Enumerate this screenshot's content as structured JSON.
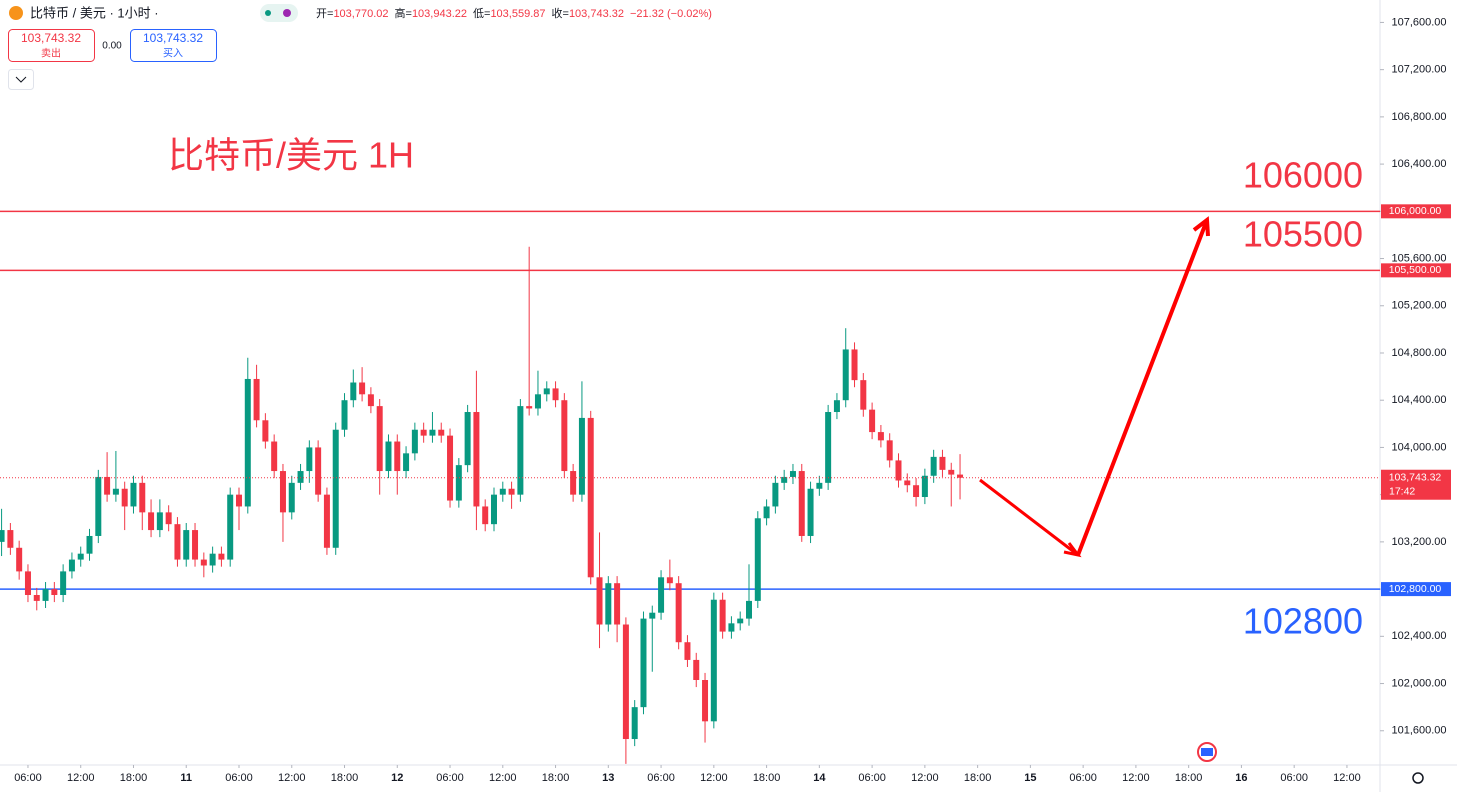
{
  "header": {
    "title": "比特币 / 美元 · 1小时 ·",
    "ohlc": [
      {
        "label": "开=",
        "value": "103,770.02"
      },
      {
        "label": "高=",
        "value": "103,943.22"
      },
      {
        "label": "低=",
        "value": "103,559.87"
      },
      {
        "label": "收=",
        "value": "103,743.32"
      }
    ],
    "change": "−21.32 (−0.02%)",
    "sell": {
      "price": "103,743.32",
      "label": "卖出"
    },
    "spread": "0.00",
    "buy": {
      "price": "103,743.32",
      "label": "买入"
    }
  },
  "chart_data": {
    "type": "candlestick",
    "annotation": "比特币/美元 1H",
    "up_color": "#089981",
    "down_color": "#f23645",
    "open": [
      103200,
      103300,
      103150,
      102950,
      102750,
      102700,
      102800,
      102750,
      102950,
      103050,
      103100,
      103250,
      103750,
      103600,
      103650,
      103500,
      103700,
      103450,
      103300,
      103450,
      103350,
      103050,
      103300,
      103050,
      103000,
      103100,
      103050,
      103600,
      103500,
      104580,
      104230,
      104050,
      103800,
      103450,
      103700,
      103800,
      104000,
      103600,
      103150,
      104150,
      104400,
      104550,
      104450,
      104350,
      103800,
      104050,
      103800,
      103950,
      104150,
      104100,
      104150,
      104100,
      103550,
      103850,
      104300,
      103500,
      103350,
      103600,
      103650,
      103600,
      104350,
      104330,
      104450,
      104500,
      104400,
      103800,
      103600,
      104250,
      102900,
      102500,
      102850,
      102500,
      101530,
      101800,
      102550,
      102600,
      102900,
      102850,
      102350,
      102200,
      102030,
      101680,
      102710,
      102440,
      102510,
      102550,
      102700,
      103400,
      103500,
      103700,
      103750,
      103800,
      103250,
      103650,
      103700,
      104300,
      104400,
      104830,
      104570,
      104320,
      104130,
      104060,
      103890,
      103720,
      103680,
      103580,
      103760,
      103920,
      103810,
      103770.02
    ],
    "high": [
      103480,
      103360,
      103210,
      103010,
      102810,
      102860,
      102860,
      103010,
      103110,
      103160,
      103310,
      103810,
      103960,
      103970,
      103710,
      103760,
      103760,
      103560,
      103560,
      103510,
      103410,
      103360,
      103360,
      103110,
      103160,
      103160,
      103660,
      103660,
      104760,
      104700,
      104290,
      104110,
      103860,
      103760,
      103860,
      104060,
      104060,
      103660,
      104210,
      104460,
      104660,
      104680,
      104510,
      104410,
      104110,
      104110,
      104010,
      104210,
      104210,
      104300,
      104210,
      104160,
      103910,
      104360,
      104650,
      103560,
      103660,
      103710,
      103710,
      104410,
      105700,
      104650,
      104560,
      104560,
      104460,
      103860,
      104560,
      104310,
      103280,
      102910,
      102910,
      102560,
      101860,
      102610,
      102660,
      102960,
      103050,
      102910,
      102410,
      102260,
      102090,
      102770,
      102770,
      102570,
      102610,
      103010,
      103460,
      103560,
      103760,
      103810,
      103860,
      103860,
      103710,
      103760,
      104360,
      104460,
      105010,
      104890,
      104630,
      104380,
      104190,
      104120,
      103950,
      103780,
      103740,
      103820,
      103980,
      103980,
      103870,
      103943.22
    ],
    "low": [
      103080,
      103090,
      102880,
      102690,
      102620,
      102640,
      102690,
      102690,
      102890,
      102990,
      103040,
      103190,
      103540,
      103540,
      103300,
      103440,
      103300,
      103240,
      103240,
      103290,
      102990,
      102990,
      102990,
      102900,
      102940,
      102990,
      102990,
      103300,
      103440,
      104170,
      103990,
      103740,
      103200,
      103390,
      103640,
      103700,
      103540,
      103090,
      103090,
      104090,
      104340,
      104390,
      104290,
      103600,
      103740,
      103600,
      103740,
      103890,
      104040,
      104040,
      104040,
      103490,
      103490,
      103790,
      103300,
      103290,
      103290,
      103540,
      103480,
      103540,
      104270,
      104270,
      104390,
      104340,
      103740,
      103540,
      103540,
      102840,
      102300,
      102440,
      102350,
      101320,
      101470,
      101740,
      102100,
      102540,
      102790,
      102290,
      102140,
      101970,
      101500,
      101620,
      102380,
      102380,
      102450,
      102490,
      102640,
      103340,
      103440,
      103640,
      103690,
      103200,
      103190,
      103590,
      103640,
      104240,
      104340,
      104510,
      104260,
      104070,
      104000,
      103830,
      103660,
      103620,
      103500,
      103520,
      103700,
      103750,
      103500,
      103559.87
    ],
    "close": [
      103300,
      103150,
      102950,
      102750,
      102700,
      102800,
      102750,
      102950,
      103050,
      103100,
      103250,
      103750,
      103600,
      103650,
      103500,
      103700,
      103450,
      103300,
      103450,
      103350,
      103050,
      103300,
      103050,
      103000,
      103100,
      103050,
      103600,
      103500,
      104580,
      104230,
      104050,
      103800,
      103450,
      103700,
      103800,
      104000,
      103600,
      103150,
      104150,
      104400,
      104550,
      104450,
      104350,
      103800,
      104050,
      103800,
      103950,
      104150,
      104100,
      104150,
      104100,
      103550,
      103850,
      104300,
      103500,
      103350,
      103600,
      103650,
      103600,
      104350,
      104330,
      104450,
      104500,
      104400,
      103800,
      103600,
      104250,
      102900,
      102500,
      102850,
      102500,
      101530,
      101800,
      102550,
      102600,
      102900,
      102850,
      102350,
      102200,
      102030,
      101680,
      102710,
      102440,
      102510,
      102550,
      102700,
      103400,
      103500,
      103700,
      103750,
      103800,
      103250,
      103650,
      103700,
      104300,
      104400,
      104830,
      104570,
      104320,
      104130,
      104060,
      103890,
      103720,
      103680,
      103580,
      103760,
      103920,
      103810,
      103770.02,
      103743.32
    ],
    "xlim": [
      -0.18,
      156.76
    ],
    "xticks": [
      {
        "value": 3,
        "label": "06:00"
      },
      {
        "value": 9,
        "label": "12:00"
      },
      {
        "value": 15,
        "label": "18:00"
      },
      {
        "value": 21,
        "label": "11"
      },
      {
        "value": 27,
        "label": "06:00"
      },
      {
        "value": 33,
        "label": "12:00"
      },
      {
        "value": 39,
        "label": "18:00"
      },
      {
        "value": 45,
        "label": "12"
      },
      {
        "value": 51,
        "label": "06:00"
      },
      {
        "value": 57,
        "label": "12:00"
      },
      {
        "value": 63,
        "label": "18:00"
      },
      {
        "value": 69,
        "label": "13"
      },
      {
        "value": 75,
        "label": "06:00"
      },
      {
        "value": 81,
        "label": "12:00"
      },
      {
        "value": 87,
        "label": "18:00"
      },
      {
        "value": 93,
        "label": "14"
      },
      {
        "value": 99,
        "label": "06:00"
      },
      {
        "value": 105,
        "label": "12:00"
      },
      {
        "value": 111,
        "label": "18:00"
      },
      {
        "value": 117,
        "label": "15"
      },
      {
        "value": 123,
        "label": "06:00"
      },
      {
        "value": 129,
        "label": "12:00"
      },
      {
        "value": 135,
        "label": "18:00"
      },
      {
        "value": 141,
        "label": "16"
      },
      {
        "value": 147,
        "label": "06:00"
      },
      {
        "value": 153,
        "label": "12:00"
      }
    ],
    "ylim": [
      101310,
      107790
    ],
    "yticks": [
      {
        "value": 101600,
        "label": "101,600.00"
      },
      {
        "value": 102000,
        "label": "102,000.00"
      },
      {
        "value": 102400,
        "label": "102,400.00"
      },
      {
        "value": 102800,
        "label": "102,800.00"
      },
      {
        "value": 103200,
        "label": "103,200.00"
      },
      {
        "value": 103600,
        "label": "103,600.00"
      },
      {
        "value": 104000,
        "label": "104,000.00"
      },
      {
        "value": 104400,
        "label": "104,400.00"
      },
      {
        "value": 104800,
        "label": "104,800.00"
      },
      {
        "value": 105200,
        "label": "105,200.00"
      },
      {
        "value": 105600,
        "label": "105,600.00"
      },
      {
        "value": 106000,
        "label": "106,000.00"
      },
      {
        "value": 106400,
        "label": "106,400.00"
      },
      {
        "value": 106800,
        "label": "106,800.00"
      },
      {
        "value": 107200,
        "label": "107,200.00"
      },
      {
        "value": 107600,
        "label": "107,600.00"
      }
    ],
    "levels": [
      {
        "value": 106000,
        "tag": "106,000.00",
        "color": "#f23645"
      },
      {
        "value": 105500,
        "tag": "105,500.00",
        "color": "#f23645"
      },
      {
        "value": 102800,
        "tag": "102,800.00",
        "color": "#2962ff"
      }
    ],
    "last_price": {
      "value": 103743.32,
      "tag": "103,743.32",
      "countdown": "17:42",
      "color": "#f23645"
    }
  }
}
